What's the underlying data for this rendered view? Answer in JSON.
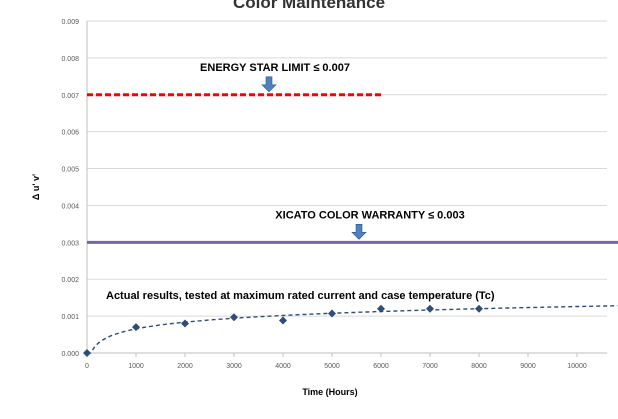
{
  "chart_data": {
    "type": "scatter",
    "title_partial": "Color Maintenance",
    "xlabel": "Time (Hours)",
    "ylabel": "Δ u' v'",
    "xlim": [
      0,
      10000
    ],
    "ylim": [
      0,
      0.009
    ],
    "x_ticks": [
      "0",
      "1000",
      "2000",
      "3000",
      "4000",
      "5000",
      "6000",
      "7000",
      "8000",
      "9000",
      "10000"
    ],
    "y_ticks": [
      "0.000",
      "0.001",
      "0.002",
      "0.003",
      "0.004",
      "0.005",
      "0.006",
      "0.007",
      "0.008",
      "0.009"
    ],
    "grid": "horizontal",
    "series": [
      {
        "name": "Actual results, tested at maximum rated current and case temperature (Tc)",
        "color": "#2e4d7b",
        "marker": "diamond",
        "points": [
          {
            "x": 0,
            "y": 0.0
          },
          {
            "x": 1000,
            "y": 0.0007
          },
          {
            "x": 2000,
            "y": 0.0008
          },
          {
            "x": 3000,
            "y": 0.00097
          },
          {
            "x": 4000,
            "y": 0.00088
          },
          {
            "x": 5000,
            "y": 0.00107
          },
          {
            "x": 6000,
            "y": 0.0012
          },
          {
            "x": 7000,
            "y": 0.0012
          },
          {
            "x": 8000,
            "y": 0.0012
          }
        ],
        "trendline": "logarithmic, dashed"
      }
    ],
    "reference_lines": [
      {
        "label": "ENERGY  STAR LIMIT ≤ 0.007",
        "y": 0.007,
        "x_start": 0,
        "x_end": 6000,
        "color": "#ff0000",
        "style": "dashed"
      },
      {
        "label": "XICATO COLOR WARRANTY ≤ 0.003",
        "y": 0.003,
        "x_start": 0,
        "x_end": 10900,
        "color": "#7b63a8",
        "style": "solid"
      }
    ],
    "arrow_color": "#4f81bd"
  }
}
